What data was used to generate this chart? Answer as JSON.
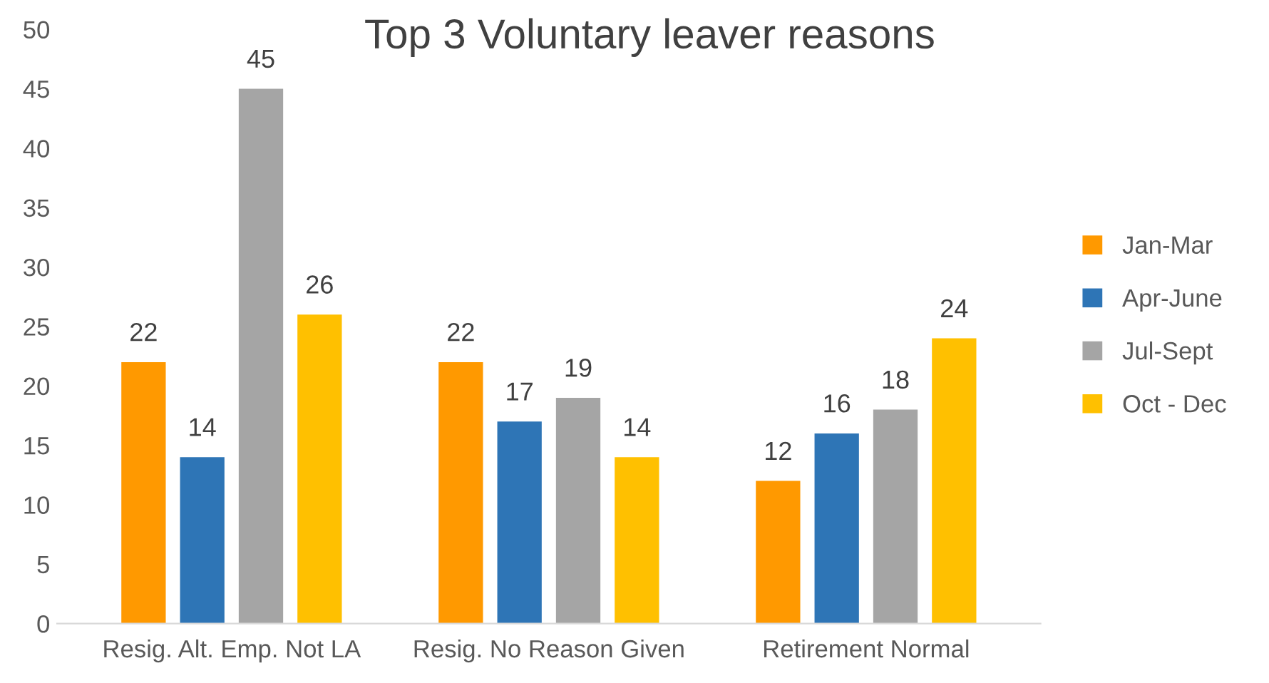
{
  "chart_data": {
    "type": "bar",
    "title": "Top 3 Voluntary leaver reasons",
    "categories": [
      "Resig. Alt. Emp. Not LA",
      "Resig. No Reason Given",
      "Retirement Normal"
    ],
    "series": [
      {
        "name": "Jan-Mar",
        "color": "#ff9900",
        "values": [
          22,
          22,
          12
        ]
      },
      {
        "name": "Apr-June",
        "color": "#2e75b6",
        "values": [
          14,
          17,
          16
        ]
      },
      {
        "name": "Jul-Sept",
        "color": "#a5a5a5",
        "values": [
          45,
          19,
          18
        ]
      },
      {
        "name": "Oct - Dec",
        "color": "#ffc000",
        "values": [
          26,
          14,
          24
        ]
      }
    ],
    "ylim": [
      0,
      50
    ],
    "yticks": [
      0,
      5,
      10,
      15,
      20,
      25,
      30,
      35,
      40,
      45,
      50
    ],
    "grid": false,
    "legend": "right",
    "data_labels": true
  }
}
